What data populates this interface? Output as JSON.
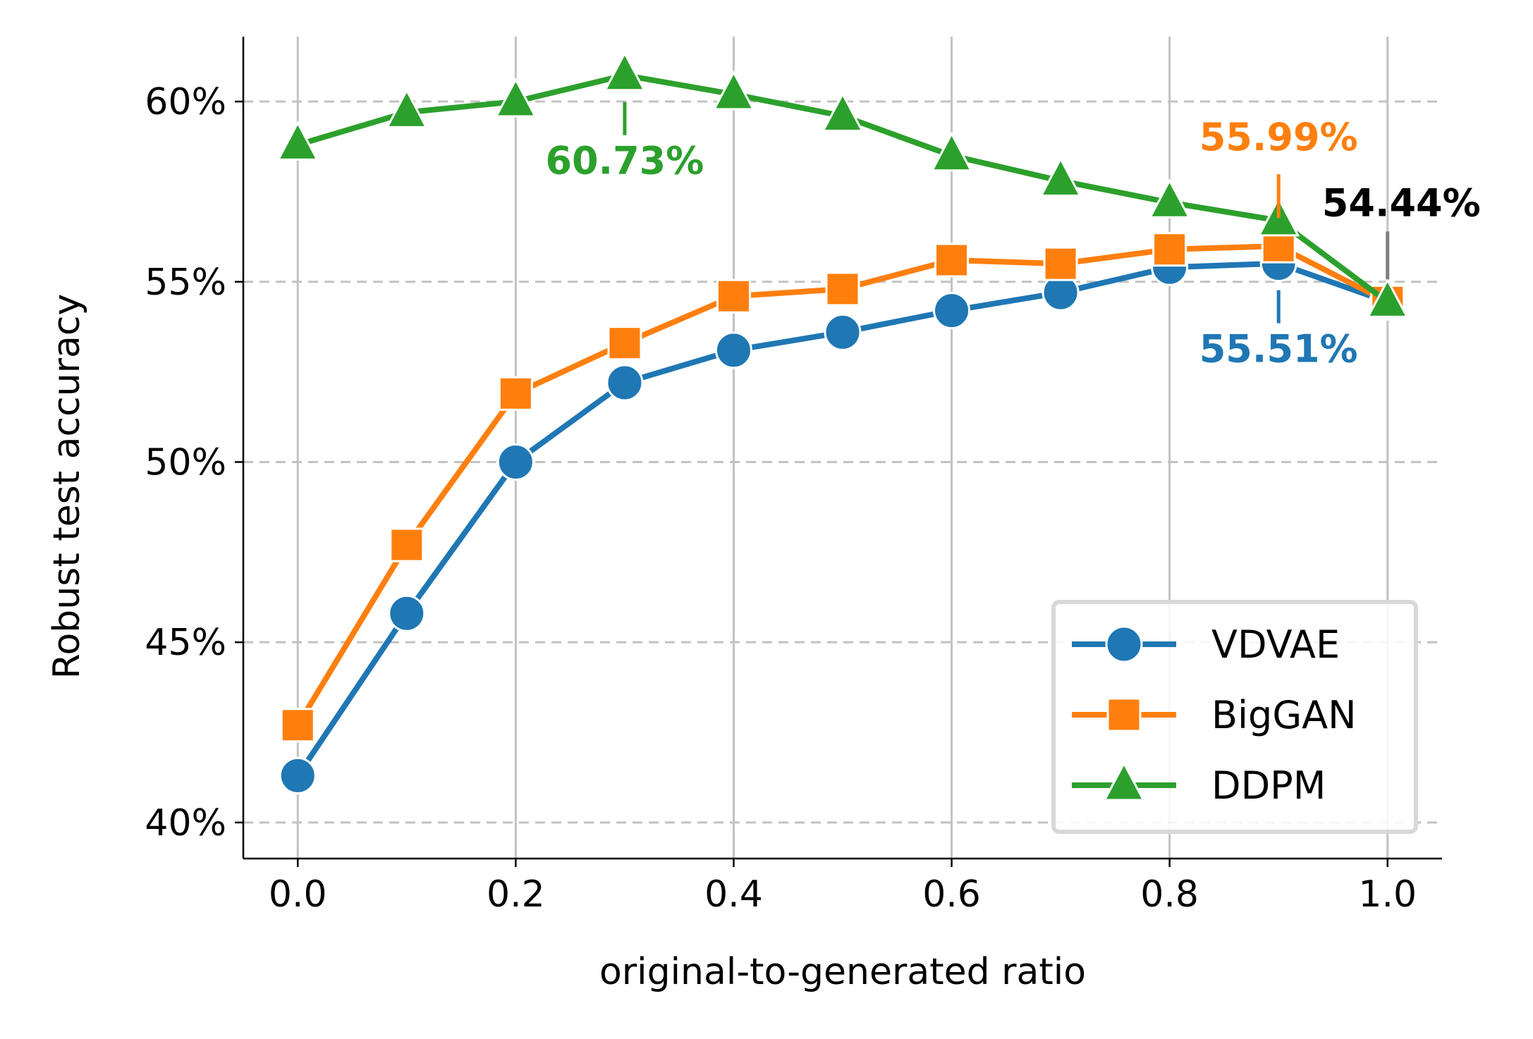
{
  "chart_data": {
    "type": "line",
    "xlabel": "original-to-generated ratio",
    "ylabel": "Robust test accuracy",
    "xlim": [
      -0.05,
      1.05
    ],
    "ylim": [
      39.0,
      61.8
    ],
    "xticks": [
      0.0,
      0.2,
      0.4,
      0.6,
      0.8,
      1.0
    ],
    "xtick_labels": [
      "0.0",
      "0.2",
      "0.4",
      "0.6",
      "0.8",
      "1.0"
    ],
    "yticks": [
      40,
      45,
      50,
      55,
      60
    ],
    "ytick_labels": [
      "40%",
      "45%",
      "50%",
      "55%",
      "60%"
    ],
    "grid": true,
    "legend_position": "bottom-right",
    "x": [
      0.0,
      0.1,
      0.2,
      0.3,
      0.4,
      0.5,
      0.6,
      0.7,
      0.8,
      0.9,
      1.0
    ],
    "series": [
      {
        "name": "VDVAE",
        "color": "#1f77b4",
        "marker": "circle",
        "values": [
          41.3,
          45.8,
          50.0,
          52.2,
          53.1,
          53.6,
          54.2,
          54.7,
          55.4,
          55.51,
          54.44
        ]
      },
      {
        "name": "BigGAN",
        "color": "#ff7f0e",
        "marker": "square",
        "values": [
          42.7,
          47.7,
          51.9,
          53.3,
          54.6,
          54.8,
          55.6,
          55.5,
          55.9,
          55.99,
          54.44
        ]
      },
      {
        "name": "DDPM",
        "color": "#2ca02c",
        "marker": "triangle",
        "values": [
          58.8,
          59.7,
          60.0,
          60.73,
          60.2,
          59.6,
          58.5,
          57.8,
          57.2,
          56.7,
          54.44
        ]
      }
    ],
    "annotations": [
      {
        "text": "60.73%",
        "x": 0.3,
        "y": 60.73,
        "color": "#2ca02c",
        "placement": "below"
      },
      {
        "text": "55.99%",
        "x": 0.9,
        "y": 55.99,
        "color": "#ff7f0e",
        "placement": "above"
      },
      {
        "text": "55.51%",
        "x": 0.9,
        "y": 55.51,
        "color": "#1f77b4",
        "placement": "below"
      },
      {
        "text": "54.44%",
        "x": 1.0,
        "y": 54.44,
        "color": "#000000",
        "placement": "above-left"
      }
    ]
  }
}
